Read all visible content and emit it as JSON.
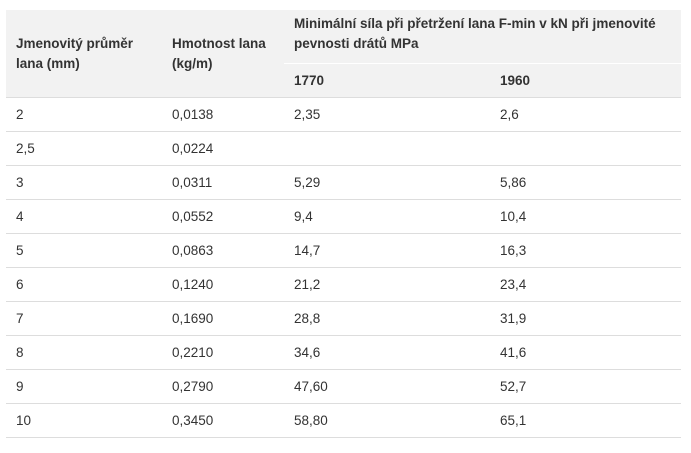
{
  "table": {
    "headers": {
      "diameter": "Jmenovitý průměr lana (mm)",
      "mass": "Hmotnost lana (kg/m)",
      "force": "Minimální síla při přetržení lana F-min v kN při jmenovité pevnosti drátů MPa",
      "strength_1": "1770",
      "strength_2": "1960"
    },
    "rows": [
      [
        "2",
        "0,0138",
        "2,35",
        "2,6"
      ],
      [
        "2,5",
        "0,0224",
        "",
        ""
      ],
      [
        "3",
        "0,0311",
        "5,29",
        "5,86"
      ],
      [
        "4",
        "0,0552",
        "9,4",
        "10,4"
      ],
      [
        "5",
        "0,0863",
        "14,7",
        "16,3"
      ],
      [
        "6",
        "0,1240",
        "21,2",
        "23,4"
      ],
      [
        "7",
        "0,1690",
        "28,8",
        "31,9"
      ],
      [
        "8",
        "0,2210",
        "34,6",
        "41,6"
      ],
      [
        "9",
        "0,2790",
        "47,60",
        "52,7"
      ],
      [
        "10",
        "0,3450",
        "58,80",
        "65,1"
      ]
    ]
  }
}
